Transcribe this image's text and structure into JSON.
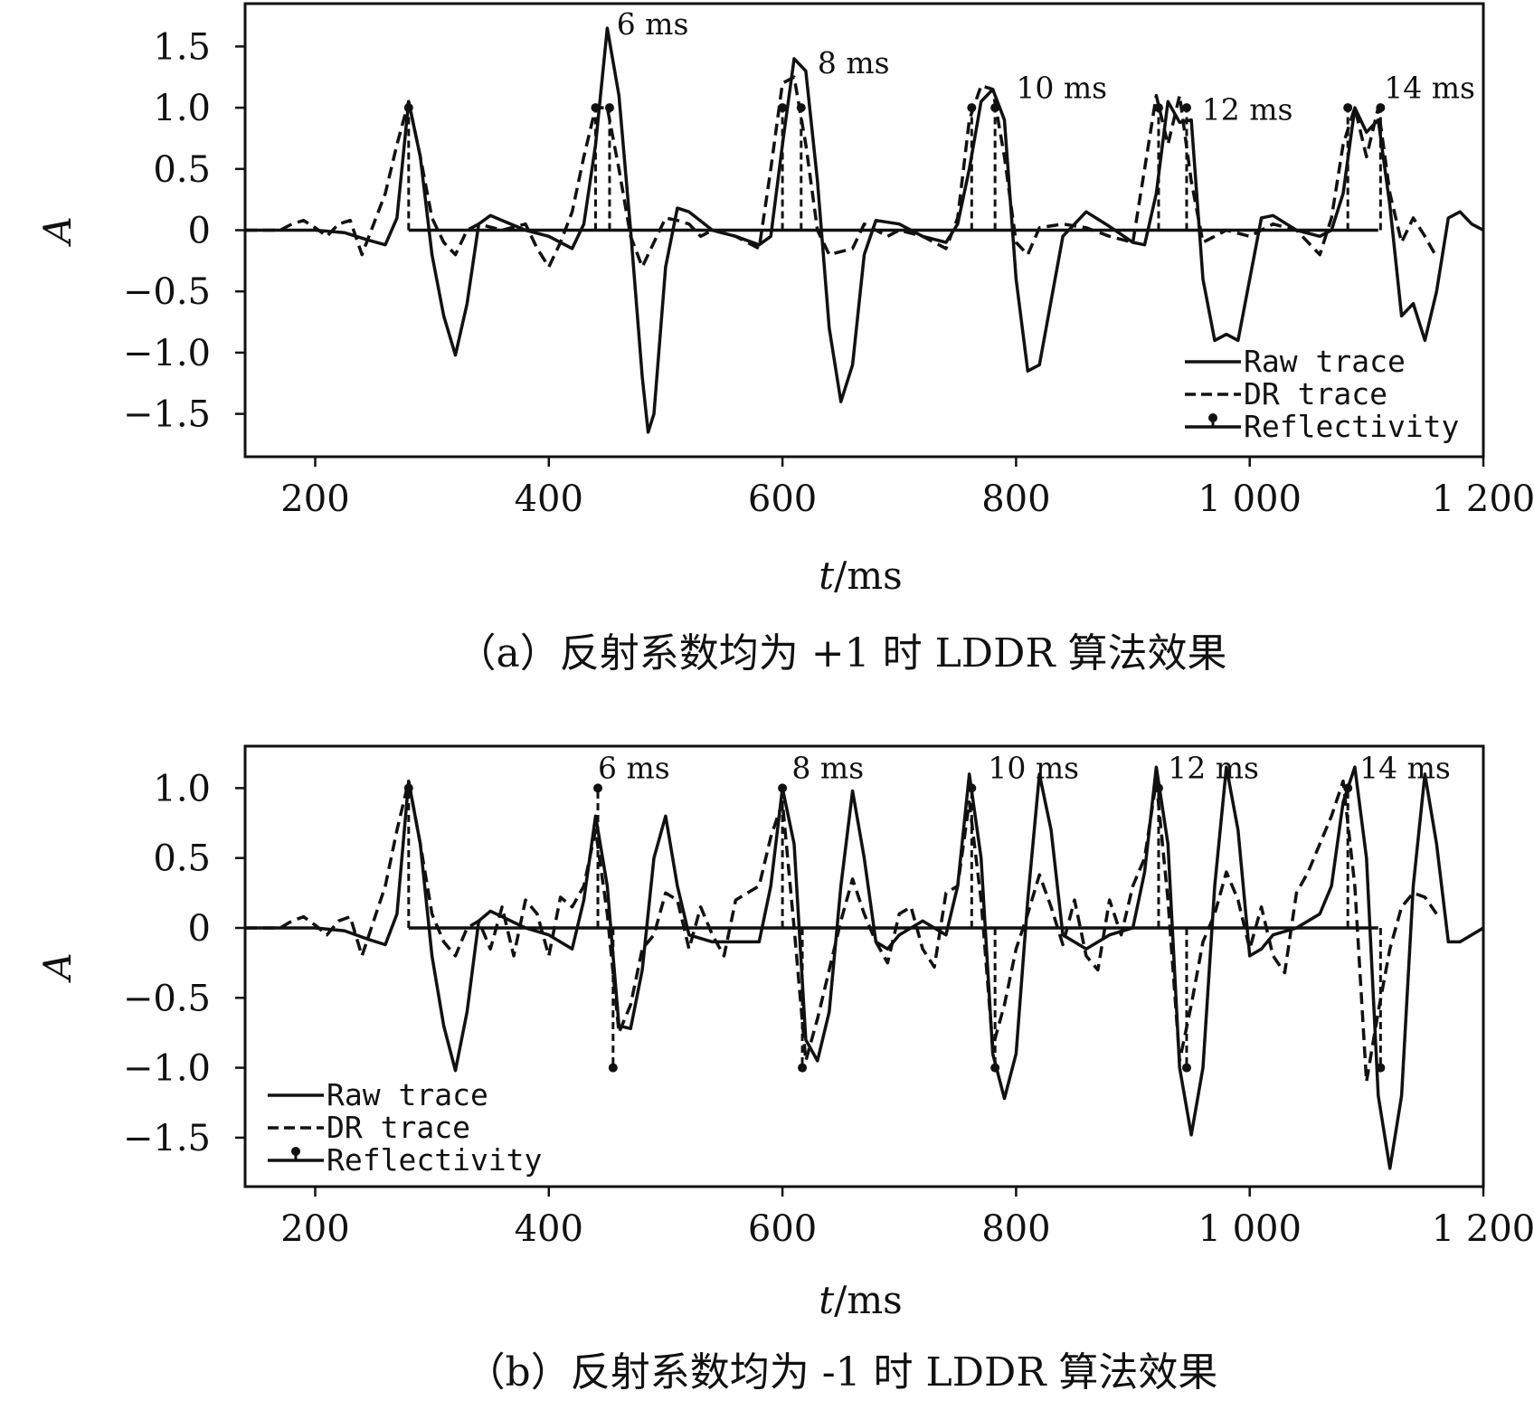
{
  "chart_data": [
    {
      "type": "line",
      "caption": "（a）反射系数均为 +1 时 LDDR 算法效果",
      "xlabel_var": "t",
      "xlabel_unit": "/ms",
      "ylabel": "A",
      "xlim": [
        140,
        1200
      ],
      "ylim": [
        -1.85,
        1.85
      ],
      "xticks": [
        200,
        400,
        600,
        800,
        1000,
        1200
      ],
      "xtick_labels": [
        "200",
        "400",
        "600",
        "800",
        "1 000",
        "1 200"
      ],
      "yticks": [
        1.5,
        1.0,
        0.5,
        0,
        -0.5,
        -1.0,
        -1.5
      ],
      "ytick_labels": [
        "1.5",
        "1.0",
        "0.5",
        "0",
        "−0.5",
        "−1.0",
        "−1.5"
      ],
      "legend_position": "bottom-right",
      "annotations": [
        {
          "text": "6 ms",
          "x": 458,
          "y": 1.6
        },
        {
          "text": "8 ms",
          "x": 630,
          "y": 1.28
        },
        {
          "text": "10 ms",
          "x": 800,
          "y": 1.08
        },
        {
          "text": "12 ms",
          "x": 959,
          "y": 0.9
        },
        {
          "text": "14 ms",
          "x": 1115,
          "y": 1.08
        }
      ],
      "reflectivity_span": [
        280,
        1110
      ],
      "spikes": [
        {
          "t": 280,
          "a": 1
        },
        {
          "t": 440,
          "a": 1
        },
        {
          "t": 452,
          "a": 1
        },
        {
          "t": 600,
          "a": 1
        },
        {
          "t": 616,
          "a": 1
        },
        {
          "t": 762,
          "a": 1
        },
        {
          "t": 782,
          "a": 1
        },
        {
          "t": 922,
          "a": 1
        },
        {
          "t": 946,
          "a": 1
        },
        {
          "t": 1084,
          "a": 1
        },
        {
          "t": 1112,
          "a": 1
        }
      ],
      "series": [
        {
          "name": "Raw trace",
          "style": "solid",
          "x": [
            140,
            200,
            225,
            245,
            260,
            270,
            280,
            290,
            300,
            310,
            320,
            330,
            340,
            350,
            360,
            380,
            400,
            420,
            430,
            440,
            450,
            460,
            470,
            480,
            485,
            490,
            500,
            510,
            520,
            540,
            560,
            580,
            590,
            600,
            610,
            620,
            630,
            640,
            650,
            660,
            670,
            680,
            700,
            720,
            740,
            750,
            760,
            770,
            780,
            790,
            800,
            810,
            820,
            840,
            860,
            880,
            900,
            910,
            920,
            930,
            940,
            950,
            960,
            970,
            980,
            990,
            1000,
            1010,
            1020,
            1040,
            1060,
            1070,
            1080,
            1090,
            1100,
            1110,
            1120,
            1130,
            1140,
            1150,
            1160,
            1170,
            1180,
            1190,
            1200
          ],
          "y": [
            0,
            0,
            -0.02,
            -0.08,
            -0.12,
            0.1,
            1.05,
            0.6,
            -0.2,
            -0.7,
            -1.02,
            -0.6,
            0.05,
            0.12,
            0.08,
            0,
            -0.05,
            -0.15,
            0.05,
            0.7,
            1.65,
            1.1,
            0,
            -1.2,
            -1.65,
            -1.5,
            -0.3,
            0.18,
            0.15,
            0,
            -0.05,
            -0.12,
            -0.05,
            0.7,
            1.4,
            1.3,
            0.4,
            -0.8,
            -1.4,
            -1.1,
            -0.2,
            0.08,
            0.05,
            -0.05,
            -0.1,
            0.05,
            0.5,
            1.05,
            1.15,
            0.9,
            -0.4,
            -1.15,
            -1.1,
            -0.05,
            0.15,
            0.03,
            -0.1,
            -0.12,
            0.3,
            1.05,
            0.88,
            0.9,
            -0.4,
            -0.9,
            -0.85,
            -0.9,
            -0.4,
            0.1,
            0.12,
            0,
            -0.05,
            0,
            0.3,
            1.0,
            0.8,
            0.9,
            0.2,
            -0.7,
            -0.6,
            -0.9,
            -0.5,
            0.1,
            0.15,
            0.05,
            0
          ]
        },
        {
          "name": "DR trace",
          "style": "dashed",
          "x": [
            140,
            170,
            180,
            190,
            200,
            210,
            220,
            230,
            240,
            250,
            260,
            270,
            280,
            290,
            300,
            310,
            320,
            330,
            340,
            360,
            380,
            390,
            400,
            410,
            420,
            430,
            440,
            450,
            460,
            470,
            480,
            490,
            500,
            510,
            520,
            530,
            540,
            560,
            570,
            580,
            590,
            600,
            610,
            620,
            630,
            640,
            660,
            670,
            680,
            690,
            700,
            720,
            740,
            750,
            760,
            770,
            780,
            790,
            800,
            810,
            820,
            840,
            860,
            880,
            900,
            910,
            920,
            930,
            940,
            950,
            960,
            970,
            980,
            1000,
            1020,
            1040,
            1060,
            1070,
            1080,
            1090,
            1100,
            1110,
            1120,
            1130,
            1140,
            1150,
            1160
          ],
          "y": [
            0,
            0,
            0.05,
            0.08,
            0.02,
            -0.05,
            0.05,
            0.08,
            -0.2,
            0.05,
            0.3,
            0.7,
            1.05,
            0.6,
            0.1,
            -0.1,
            -0.2,
            0,
            0.05,
            0,
            0.05,
            -0.15,
            -0.3,
            -0.1,
            0.15,
            0.6,
            1.0,
            1.0,
            0.5,
            -0.05,
            -0.3,
            -0.1,
            0.1,
            0.08,
            0.05,
            -0.05,
            0,
            -0.05,
            -0.1,
            -0.15,
            0.5,
            1.2,
            1.25,
            0.7,
            0,
            -0.2,
            -0.15,
            0.05,
            0,
            -0.05,
            0,
            -0.05,
            -0.15,
            0.1,
            0.9,
            1.18,
            1.15,
            0.6,
            -0.1,
            -0.2,
            0.02,
            0.05,
            0.02,
            -0.05,
            -0.1,
            0.5,
            1.1,
            0.7,
            1.1,
            0.4,
            -0.1,
            -0.05,
            0,
            -0.05,
            0.05,
            0,
            -0.2,
            0.1,
            0.7,
            1.0,
            0.6,
            1.0,
            0.3,
            -0.1,
            0.1,
            -0.05,
            -0.22
          ]
        }
      ],
      "legend": [
        {
          "label": "Raw trace",
          "style": "solid"
        },
        {
          "label": "DR trace",
          "style": "dashed"
        },
        {
          "label": "Reflectivity",
          "style": "marker"
        }
      ]
    },
    {
      "type": "line",
      "caption": "（b）反射系数均为 -1 时 LDDR 算法效果",
      "xlabel_var": "t",
      "xlabel_unit": "/ms",
      "ylabel": "A",
      "xlim": [
        140,
        1200
      ],
      "ylim": [
        -1.85,
        1.3
      ],
      "xticks": [
        200,
        400,
        600,
        800,
        1000,
        1200
      ],
      "xtick_labels": [
        "200",
        "400",
        "600",
        "800",
        "1 000",
        "1 200"
      ],
      "yticks": [
        1.0,
        0.5,
        0,
        -0.5,
        -1.0,
        -1.5
      ],
      "ytick_labels": [
        "1.0",
        "0.5",
        "0",
        "−0.5",
        "−1.0",
        "−1.5"
      ],
      "legend_position": "bottom-left",
      "annotations": [
        {
          "text": "6 ms",
          "x": 442,
          "y": 1.07
        },
        {
          "text": "8 ms",
          "x": 608,
          "y": 1.07
        },
        {
          "text": "10 ms",
          "x": 776,
          "y": 1.07
        },
        {
          "text": "12 ms",
          "x": 930,
          "y": 1.07
        },
        {
          "text": "14 ms",
          "x": 1094,
          "y": 1.07
        }
      ],
      "reflectivity_span": [
        280,
        1110
      ],
      "spikes": [
        {
          "t": 280,
          "a": 1
        },
        {
          "t": 442,
          "a": 1
        },
        {
          "t": 455,
          "a": -1
        },
        {
          "t": 600,
          "a": 1
        },
        {
          "t": 617,
          "a": -1
        },
        {
          "t": 762,
          "a": 1
        },
        {
          "t": 782,
          "a": -1
        },
        {
          "t": 922,
          "a": 1
        },
        {
          "t": 946,
          "a": -1
        },
        {
          "t": 1084,
          "a": 1
        },
        {
          "t": 1112,
          "a": -1
        }
      ],
      "series": [
        {
          "name": "Raw trace",
          "style": "solid",
          "x": [
            140,
            200,
            225,
            245,
            260,
            270,
            280,
            290,
            300,
            310,
            320,
            330,
            340,
            350,
            360,
            380,
            400,
            420,
            430,
            440,
            450,
            460,
            470,
            480,
            490,
            500,
            510,
            520,
            540,
            560,
            580,
            590,
            600,
            610,
            620,
            630,
            640,
            650,
            660,
            670,
            680,
            690,
            700,
            720,
            740,
            750,
            760,
            770,
            780,
            790,
            800,
            810,
            820,
            830,
            840,
            860,
            880,
            900,
            910,
            920,
            930,
            940,
            950,
            960,
            970,
            980,
            990,
            1000,
            1010,
            1020,
            1040,
            1060,
            1070,
            1080,
            1090,
            1100,
            1110,
            1120,
            1130,
            1140,
            1150,
            1160,
            1170,
            1180,
            1200
          ],
          "y": [
            0,
            0,
            -0.02,
            -0.08,
            -0.12,
            0.1,
            1.05,
            0.6,
            -0.2,
            -0.7,
            -1.02,
            -0.6,
            0.05,
            0.12,
            0.08,
            0,
            -0.05,
            -0.15,
            0.2,
            0.8,
            0.3,
            -0.7,
            -0.72,
            -0.3,
            0.5,
            0.8,
            0.3,
            -0.05,
            -0.1,
            -0.1,
            -0.1,
            0.3,
            1.0,
            0.6,
            -0.8,
            -0.95,
            -0.6,
            0.3,
            0.98,
            0.5,
            -0.1,
            -0.15,
            -0.05,
            0.05,
            -0.05,
            0.3,
            1.1,
            0.5,
            -0.9,
            -1.22,
            -0.9,
            0.2,
            1.1,
            0.7,
            -0.05,
            -0.15,
            -0.05,
            0,
            0.4,
            1.15,
            0.6,
            -1.0,
            -1.48,
            -1.0,
            0.3,
            1.15,
            0.7,
            -0.2,
            -0.15,
            -0.05,
            0,
            0.1,
            0.3,
            0.9,
            1.15,
            0.5,
            -1.2,
            -1.72,
            -1.2,
            0.3,
            1.1,
            0.6,
            -0.1,
            -0.1,
            0
          ]
        },
        {
          "name": "DR trace",
          "style": "dashed",
          "x": [
            140,
            170,
            180,
            190,
            200,
            210,
            220,
            230,
            240,
            250,
            260,
            270,
            280,
            290,
            300,
            310,
            320,
            330,
            340,
            350,
            360,
            370,
            380,
            390,
            400,
            410,
            420,
            430,
            440,
            450,
            460,
            470,
            480,
            490,
            500,
            510,
            520,
            530,
            540,
            550,
            560,
            570,
            580,
            590,
            600,
            610,
            620,
            630,
            640,
            650,
            660,
            670,
            680,
            690,
            700,
            710,
            720,
            730,
            740,
            750,
            760,
            770,
            780,
            790,
            800,
            810,
            820,
            830,
            840,
            850,
            860,
            870,
            880,
            890,
            900,
            910,
            920,
            930,
            940,
            950,
            960,
            970,
            980,
            990,
            1000,
            1010,
            1020,
            1030,
            1040,
            1050,
            1060,
            1070,
            1080,
            1090,
            1100,
            1110,
            1120,
            1130,
            1140,
            1150,
            1160
          ],
          "y": [
            0,
            0,
            0.05,
            0.08,
            0.02,
            -0.05,
            0.05,
            0.08,
            -0.2,
            0.05,
            0.3,
            0.7,
            1.05,
            0.6,
            0.1,
            -0.1,
            -0.2,
            0,
            0.05,
            -0.15,
            0.15,
            -0.2,
            0.2,
            0.1,
            -0.2,
            0.22,
            0.15,
            0.3,
            0.7,
            0.1,
            -0.75,
            -0.55,
            -0.15,
            -0.05,
            0.25,
            0.2,
            -0.15,
            0.15,
            -0.05,
            -0.2,
            0.2,
            0.25,
            0.3,
            0.65,
            0.9,
            0.0,
            -0.95,
            -0.65,
            -0.3,
            0.05,
            0.35,
            0.1,
            -0.1,
            -0.25,
            0.1,
            0.15,
            -0.15,
            -0.28,
            0.25,
            0.3,
            0.9,
            0.2,
            -0.85,
            -0.55,
            -0.15,
            0.1,
            0.38,
            0.15,
            -0.12,
            0.2,
            -0.2,
            -0.3,
            0.2,
            -0.05,
            0.3,
            0.5,
            1.05,
            0.2,
            -0.95,
            -0.55,
            -0.1,
            0.1,
            0.4,
            0.2,
            -0.15,
            0.15,
            -0.2,
            -0.32,
            0.25,
            0.4,
            0.6,
            0.8,
            1.05,
            0.3,
            -1.1,
            -0.6,
            -0.15,
            0.15,
            0.25,
            0.22,
            0.1
          ]
        }
      ],
      "legend": [
        {
          "label": "Raw trace",
          "style": "solid"
        },
        {
          "label": "DR trace",
          "style": "dashed"
        },
        {
          "label": "Reflectivity",
          "style": "marker"
        }
      ]
    }
  ]
}
